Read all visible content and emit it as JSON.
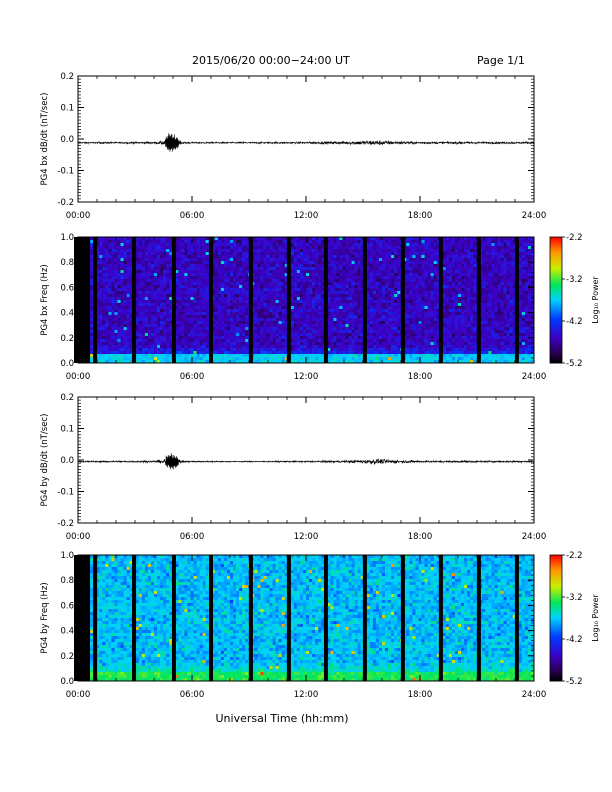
{
  "header": {
    "title": "2015/06/20  00:00−24:00 UT",
    "page": "Page 1/1"
  },
  "chart_data": [
    {
      "type": "line",
      "ylabel": "PG4 bx dB/dt (nT/sec)",
      "xlim": [
        0,
        24
      ],
      "ylim": [
        -0.2,
        0.2
      ],
      "x_ticks": [
        "00:00",
        "06:00",
        "12:00",
        "18:00",
        "24:00"
      ],
      "y_ticks": [
        "0.2",
        "0.1",
        "0.0",
        "-0.1",
        "-0.2"
      ],
      "series": [
        {
          "baseline": -0.012,
          "x": [
            0,
            2,
            4,
            4.3,
            4.6,
            4.9,
            5.2,
            5.5,
            6,
            8,
            10,
            12,
            13,
            14,
            15,
            15.5,
            16,
            16.5,
            17,
            18,
            20,
            22,
            24
          ],
          "amplitude": [
            0.004,
            0.004,
            0.005,
            0.008,
            0.018,
            0.035,
            0.02,
            0.006,
            0.004,
            0.004,
            0.004,
            0.005,
            0.007,
            0.008,
            0.012,
            0.014,
            0.012,
            0.01,
            0.008,
            0.006,
            0.006,
            0.005,
            0.005
          ]
        }
      ]
    },
    {
      "type": "heatmap",
      "ylabel": "PG4 bx Freq (Hz)",
      "xlim": [
        0,
        24
      ],
      "ylim": [
        0.0,
        1.0
      ],
      "x_ticks": [
        "00:00",
        "06:00",
        "12:00",
        "18:00",
        "24:00"
      ],
      "y_ticks": [
        "1.0",
        "0.8",
        "0.6",
        "0.4",
        "0.2",
        "0.0"
      ],
      "colorbar": {
        "label": "Log₁₀ Power",
        "range": [
          -5.2,
          -2.2
        ],
        "ticks": [
          "-2.2",
          "-3.2",
          "-4.2",
          "-5.2"
        ]
      },
      "level": -4.6,
      "low_freq_level": -3.7,
      "gaps_hours": [
        0.9,
        2.95,
        5.05,
        7.0,
        9.1,
        11.1,
        13.05,
        15.1,
        17.1,
        19.1,
        21.1,
        23.1
      ]
    },
    {
      "type": "line",
      "ylabel": "PG4 by dB/dt (nT/sec)",
      "xlim": [
        0,
        24
      ],
      "ylim": [
        -0.2,
        0.2
      ],
      "x_ticks": [
        "00:00",
        "06:00",
        "12:00",
        "18:00",
        "24:00"
      ],
      "y_ticks": [
        "0.2",
        "0.1",
        "0.0",
        "-0.1",
        "-0.2"
      ],
      "series": [
        {
          "baseline": -0.005,
          "x": [
            0,
            2,
            4,
            4.3,
            4.6,
            4.9,
            5.2,
            5.5,
            6,
            8,
            10,
            12,
            13,
            14,
            15,
            15.5,
            16,
            16.5,
            17,
            18,
            20,
            22,
            24
          ],
          "amplitude": [
            0.004,
            0.004,
            0.005,
            0.008,
            0.015,
            0.03,
            0.018,
            0.006,
            0.004,
            0.003,
            0.003,
            0.004,
            0.005,
            0.006,
            0.01,
            0.014,
            0.013,
            0.011,
            0.008,
            0.005,
            0.005,
            0.005,
            0.005
          ]
        }
      ]
    },
    {
      "type": "heatmap",
      "ylabel": "PG4 by Freq (Hz)",
      "xlabel": "Universal Time (hh:mm)",
      "xlim": [
        0,
        24
      ],
      "ylim": [
        0.0,
        1.0
      ],
      "x_ticks": [
        "00:00",
        "06:00",
        "12:00",
        "18:00",
        "24:00"
      ],
      "y_ticks": [
        "1.0",
        "0.8",
        "0.6",
        "0.4",
        "0.2",
        "0.0"
      ],
      "colorbar": {
        "label": "Log₁₀ Power",
        "range": [
          -5.2,
          -2.2
        ],
        "ticks": [
          "-2.2",
          "-3.2",
          "-4.2",
          "-5.2"
        ]
      },
      "level": -3.75,
      "low_freq_level": -3.3,
      "gaps_hours": [
        0.9,
        2.95,
        5.05,
        7.0,
        9.1,
        11.1,
        13.05,
        15.1,
        17.1,
        19.1,
        21.1,
        23.1
      ]
    }
  ]
}
